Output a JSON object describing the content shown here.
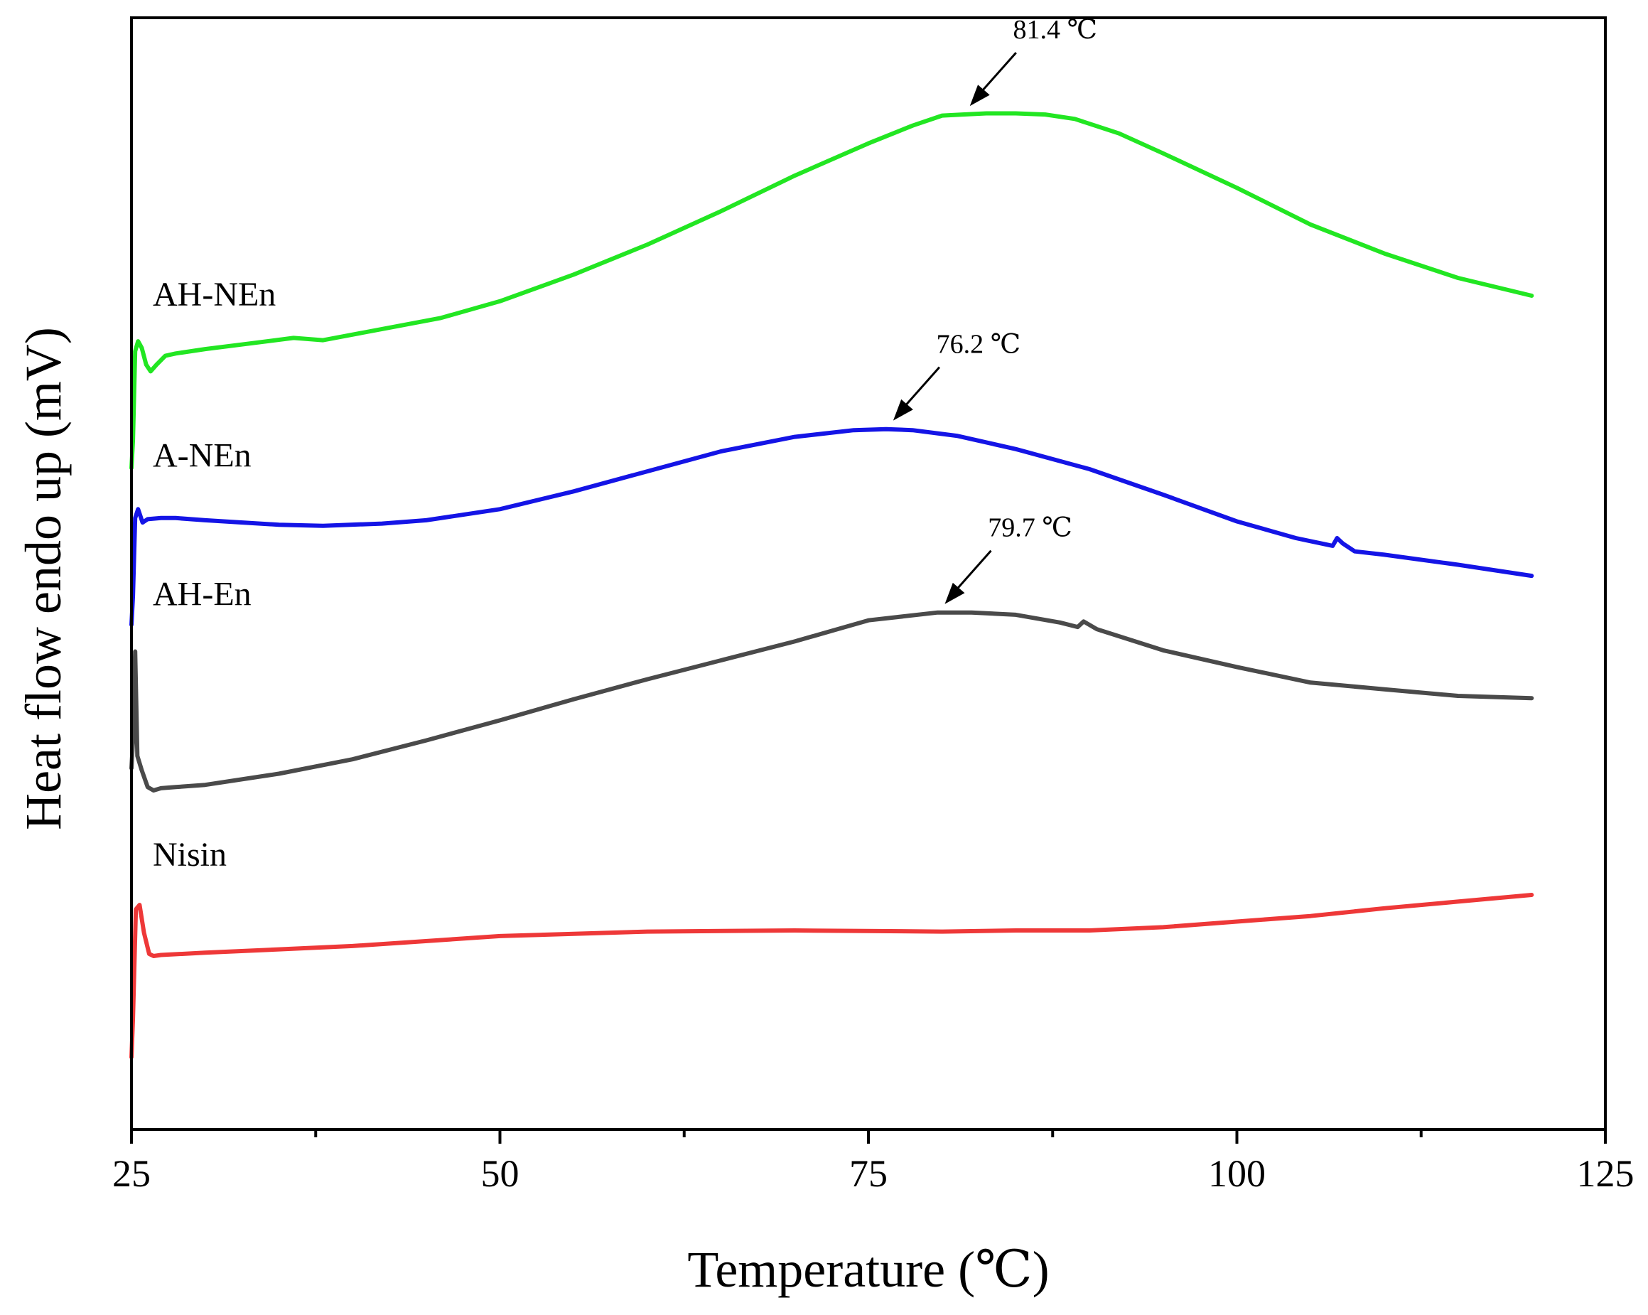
{
  "chart_data": {
    "type": "line",
    "xlabel": "Temperature (℃)",
    "ylabel": "Heat flow endo up (mV)",
    "xlim": [
      25,
      125
    ],
    "xticks": [
      25,
      50,
      75,
      100,
      125
    ],
    "xticks_minor": [
      37.5,
      62.5,
      87.5,
      112.5
    ],
    "ylim": [
      0,
      100
    ],
    "grid": false,
    "legend": "none",
    "series": [
      {
        "name": "AH-NEn",
        "color": "#22e622",
        "x": [
          25.0,
          25.1,
          25.25,
          25.45,
          25.7,
          26.0,
          26.3,
          26.7,
          27.3,
          28.0,
          30,
          33,
          36,
          38,
          42,
          46,
          50,
          55,
          60,
          65,
          70,
          75,
          78,
          80,
          81.4,
          83,
          85,
          87,
          89,
          92,
          95,
          100,
          105,
          110,
          115,
          120
        ],
        "y": [
          59.5,
          62,
          70,
          70.9,
          70.3,
          68.8,
          68.2,
          68.8,
          69.6,
          69.8,
          70.2,
          70.7,
          71.2,
          71.0,
          72.0,
          73.0,
          74.5,
          76.9,
          79.6,
          82.6,
          85.8,
          88.7,
          90.3,
          91.2,
          91.3,
          91.4,
          91.4,
          91.3,
          90.9,
          89.6,
          87.8,
          84.7,
          81.4,
          78.8,
          76.6,
          75.0
        ]
      },
      {
        "name": "A-NEn",
        "color": "#1414e6",
        "x": [
          25.0,
          25.1,
          25.25,
          25.45,
          25.75,
          26.1,
          27.0,
          28.0,
          30,
          35,
          38,
          42,
          45,
          50,
          55,
          60,
          65,
          70,
          74,
          76.2,
          78,
          81,
          85,
          90,
          95,
          100,
          104,
          106.5,
          106.8,
          107.2,
          108,
          110,
          115,
          120
        ],
        "y": [
          45.4,
          48,
          55.0,
          55.8,
          54.6,
          54.9,
          55.0,
          55.0,
          54.8,
          54.4,
          54.3,
          54.5,
          54.8,
          55.8,
          57.4,
          59.2,
          61.0,
          62.3,
          62.9,
          63.0,
          62.9,
          62.4,
          61.2,
          59.4,
          57.1,
          54.7,
          53.2,
          52.5,
          53.2,
          52.7,
          52.0,
          51.7,
          50.8,
          49.8
        ]
      },
      {
        "name": "AH-En",
        "color": "#4a4a4a",
        "x": [
          25.0,
          25.1,
          25.25,
          25.4,
          25.7,
          26.1,
          26.5,
          27.0,
          28.0,
          30,
          35,
          40,
          45,
          50,
          55,
          60,
          65,
          70,
          75,
          79.7,
          82,
          85,
          88,
          89.2,
          89.6,
          90.5,
          95,
          100,
          105,
          110,
          115,
          120
        ],
        "y": [
          32.5,
          35,
          43.0,
          33.6,
          32.3,
          30.8,
          30.5,
          30.7,
          30.8,
          31.0,
          32.0,
          33.3,
          35.0,
          36.8,
          38.7,
          40.5,
          42.2,
          43.9,
          45.8,
          46.5,
          46.5,
          46.3,
          45.6,
          45.2,
          45.7,
          45.0,
          43.1,
          41.6,
          40.2,
          39.6,
          39.0,
          38.8
        ]
      },
      {
        "name": "Nisin",
        "color": "#ee3838",
        "x": [
          25.0,
          25.1,
          25.3,
          25.55,
          25.85,
          26.2,
          26.5,
          27.0,
          30,
          35,
          40,
          50,
          60,
          70,
          80,
          85,
          90,
          95,
          100,
          105,
          110,
          115,
          120
        ],
        "y": [
          6.5,
          10,
          19.8,
          20.2,
          17.7,
          15.8,
          15.6,
          15.7,
          15.9,
          16.2,
          16.5,
          17.4,
          17.8,
          17.9,
          17.8,
          17.9,
          17.9,
          18.2,
          18.7,
          19.2,
          19.9,
          20.5,
          21.1
        ]
      }
    ],
    "annotations": [
      {
        "text": "81.4 ℃",
        "x": 81.4,
        "series": "AH-NEn"
      },
      {
        "text": "76.2 ℃",
        "x": 76.2,
        "series": "A-NEn"
      },
      {
        "text": "79.7 ℃",
        "x": 79.7,
        "series": "AH-En"
      }
    ]
  }
}
